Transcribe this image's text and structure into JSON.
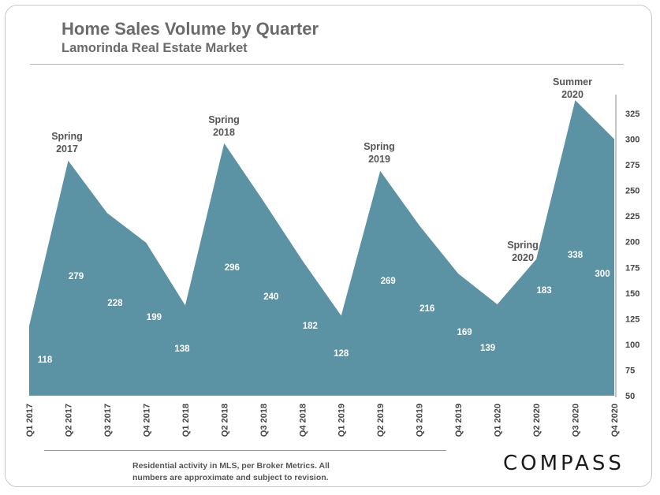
{
  "header": {
    "title": "Home Sales Volume by Quarter",
    "subtitle": "Lamorinda Real Estate Market"
  },
  "footnote": "Residential activity in MLS, per Broker Metrics. All numbers are approximate and subject to revision.",
  "logo": "COMPASS",
  "colors": {
    "area": "#5b93a4",
    "text": "#6b6b6b",
    "label": "#ffffff"
  },
  "chart_data": {
    "type": "area",
    "title": "Home Sales Volume by Quarter",
    "subtitle": "Lamorinda Real Estate Market",
    "categories": [
      "Q1 2017",
      "Q2 2017",
      "Q3 2017",
      "Q4 2017",
      "Q1 2018",
      "Q2 2018",
      "Q3 2018",
      "Q4 2018",
      "Q1 2019",
      "Q2 2019",
      "Q3 2019",
      "Q4 2019",
      "Q1 2020",
      "Q2 2020",
      "Q3 2020",
      "Q4 2020"
    ],
    "values": [
      118,
      279,
      228,
      199,
      138,
      296,
      240,
      182,
      128,
      269,
      216,
      169,
      139,
      183,
      338,
      300
    ],
    "ylim": [
      50,
      340
    ],
    "yticks": [
      50,
      75,
      100,
      125,
      150,
      175,
      200,
      225,
      250,
      275,
      300,
      325
    ],
    "y_axis_side": "right",
    "grid": false,
    "annotations": [
      {
        "index": 1,
        "lines": [
          "Spring",
          "2017"
        ]
      },
      {
        "index": 5,
        "lines": [
          "Spring",
          "2018"
        ]
      },
      {
        "index": 9,
        "lines": [
          "Spring",
          "2019"
        ]
      },
      {
        "index": 13,
        "lines": [
          "Spring",
          "2020"
        ]
      },
      {
        "index": 14,
        "lines": [
          "Summer",
          "2020"
        ]
      }
    ]
  }
}
